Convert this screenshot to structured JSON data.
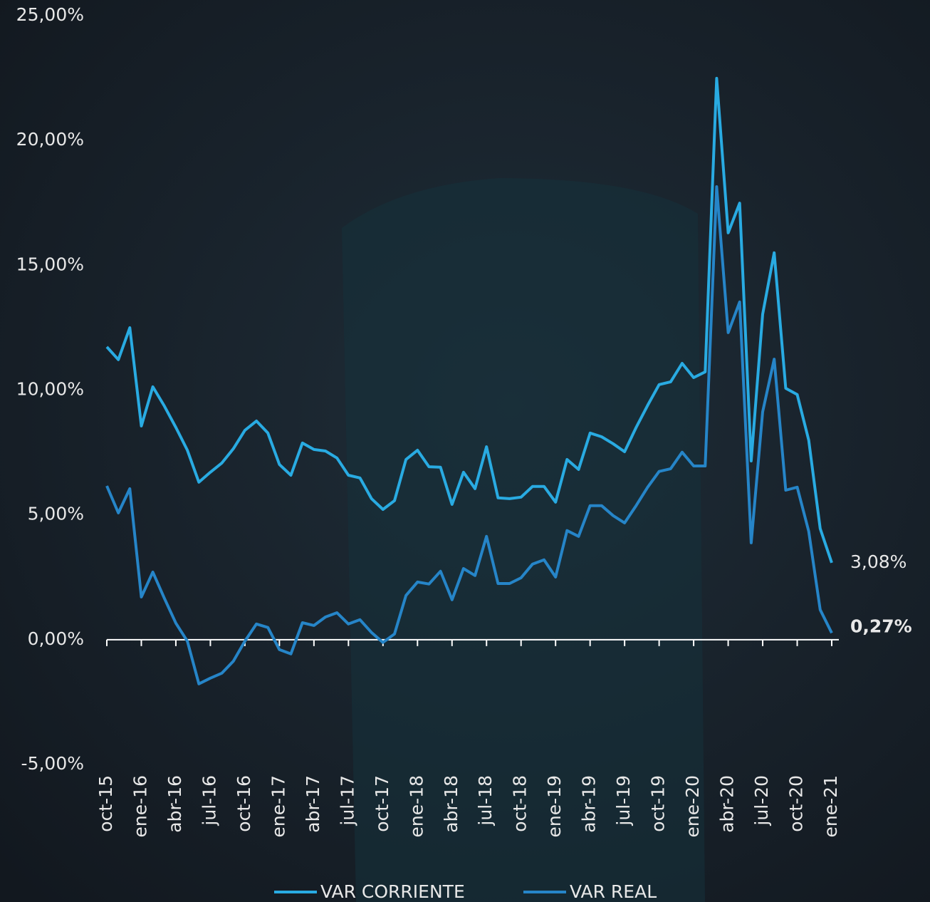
{
  "chart_data": {
    "type": "line",
    "categories": [
      "oct-15",
      null,
      null,
      "ene-16",
      null,
      null,
      "abr-16",
      null,
      null,
      "jul-16",
      null,
      null,
      "oct-16",
      null,
      null,
      "ene-17",
      null,
      null,
      "abr-17",
      null,
      null,
      "jul-17",
      null,
      null,
      "oct-17",
      null,
      null,
      "ene-18",
      null,
      null,
      "abr-18",
      null,
      null,
      "jul-18",
      null,
      null,
      "oct-18",
      null,
      null,
      "ene-19",
      null,
      null,
      "abr-19",
      null,
      null,
      "jul-19",
      null,
      null,
      "oct-19",
      null,
      null,
      "ene-20",
      null,
      null,
      "abr-20",
      null,
      null,
      "jul-20",
      null,
      null,
      "oct-20",
      null,
      null,
      "ene-21"
    ],
    "series": [
      {
        "name": "VAR CORRIENTE",
        "color": "#29abe2",
        "values": [
          11.73,
          11.22,
          12.5,
          8.56,
          10.13,
          9.36,
          8.5,
          7.59,
          6.31,
          6.71,
          7.08,
          7.65,
          8.39,
          8.76,
          8.28,
          7.02,
          6.59,
          7.88,
          7.62,
          7.56,
          7.28,
          6.59,
          6.48,
          5.65,
          5.22,
          5.57,
          7.22,
          7.59,
          6.93,
          6.91,
          5.42,
          6.71,
          6.05,
          7.73,
          5.68,
          5.65,
          5.71,
          6.14,
          6.14,
          5.51,
          7.22,
          6.82,
          8.28,
          8.13,
          7.85,
          7.53,
          8.5,
          9.39,
          10.22,
          10.33,
          11.07,
          10.5,
          10.73,
          22.49,
          16.3,
          17.49,
          7.16,
          13.04,
          15.5,
          10.07,
          9.82,
          7.99,
          4.45,
          3.08
        ],
        "value_labels": [
          null,
          null,
          null,
          null,
          null,
          null,
          null,
          null,
          null,
          null,
          null,
          null,
          null,
          null,
          null,
          null,
          null,
          null,
          null,
          null,
          null,
          null,
          null,
          null,
          null,
          null,
          null,
          null,
          null,
          null,
          null,
          null,
          null,
          null,
          null,
          null,
          null,
          null,
          null,
          null,
          null,
          null,
          null,
          null,
          null,
          null,
          null,
          null,
          null,
          null,
          null,
          null,
          null,
          null,
          null,
          null,
          null,
          null,
          null,
          null,
          null,
          null,
          null,
          "3,08%"
        ]
      },
      {
        "name": "VAR REAL",
        "color": "#2685c8",
        "values": [
          6.16,
          5.08,
          6.05,
          1.71,
          2.71,
          1.66,
          0.66,
          -0.06,
          -1.77,
          -1.54,
          -1.34,
          -0.86,
          -0.06,
          0.63,
          0.49,
          -0.4,
          -0.57,
          0.68,
          0.57,
          0.91,
          1.08,
          0.63,
          0.8,
          0.29,
          -0.11,
          0.23,
          1.77,
          2.31,
          2.23,
          2.74,
          1.6,
          2.85,
          2.57,
          4.14,
          2.25,
          2.25,
          2.48,
          3.03,
          3.2,
          2.51,
          4.37,
          4.14,
          5.37,
          5.37,
          4.97,
          4.68,
          5.37,
          6.11,
          6.74,
          6.85,
          7.51,
          6.96,
          6.96,
          18.15,
          12.3,
          13.53,
          3.88,
          9.13,
          11.24,
          5.99,
          6.11,
          4.34,
          1.2,
          0.27
        ],
        "value_labels": [
          null,
          null,
          null,
          null,
          null,
          null,
          null,
          null,
          null,
          null,
          null,
          null,
          null,
          null,
          null,
          null,
          null,
          null,
          null,
          null,
          null,
          null,
          null,
          null,
          null,
          null,
          null,
          null,
          null,
          null,
          null,
          null,
          null,
          null,
          null,
          null,
          null,
          null,
          null,
          null,
          null,
          null,
          null,
          null,
          null,
          null,
          null,
          null,
          null,
          null,
          null,
          null,
          null,
          null,
          null,
          null,
          null,
          null,
          null,
          null,
          null,
          null,
          null,
          "0,27%"
        ]
      }
    ],
    "ylim": [
      -5,
      25
    ],
    "yticks": [
      {
        "value": -5,
        "label": "-5,00%"
      },
      {
        "value": 0,
        "label": "0,00%"
      },
      {
        "value": 5,
        "label": "5,00%"
      },
      {
        "value": 10,
        "label": "10,00%"
      },
      {
        "value": 15,
        "label": "15,00%"
      },
      {
        "value": 20,
        "label": "20,00%"
      },
      {
        "value": 25,
        "label": "25,00%"
      }
    ],
    "grid": false,
    "legend": "bottom"
  }
}
